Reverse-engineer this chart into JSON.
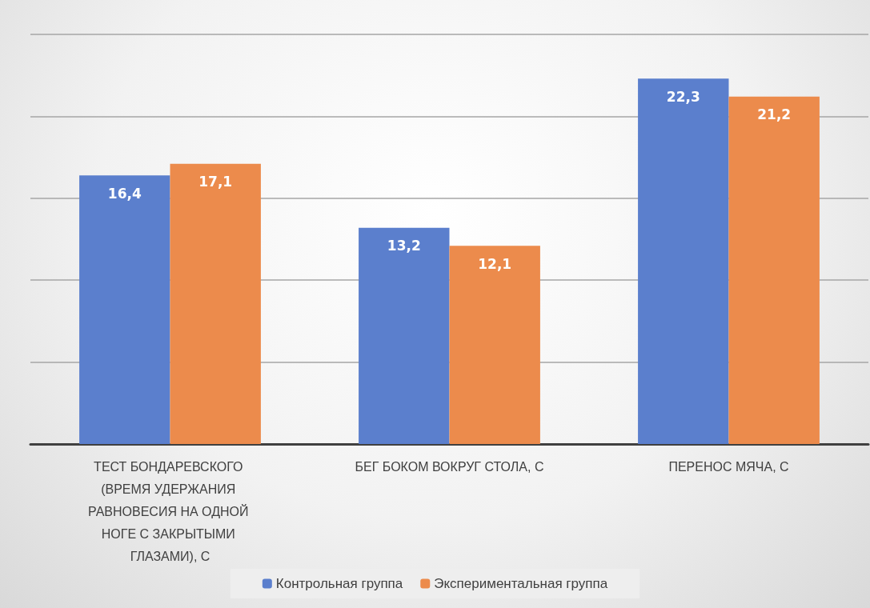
{
  "chart_data": {
    "type": "bar",
    "categories": [
      "ТЕСТ БОНДАРЕВСКОГО (ВРЕМЯ УДЕРЖАНИЯ РАВНОВЕСИЯ НА ОДНОЙ НОГЕ С ЗАКРЫТЫМИ ГЛАЗАМИ), С",
      "БЕГ БОКОМ ВОКРУГ СТОЛА, С",
      "ПЕРЕНОС МЯЧА, С"
    ],
    "series": [
      {
        "name": "Контрольная группа",
        "color": "#5b7fcd",
        "values": [
          16.4,
          13.2,
          22.3
        ],
        "value_labels": [
          "16,4",
          "13,2",
          "22,3"
        ]
      },
      {
        "name": "Экспериментальная группа",
        "color": "#ec8b4c",
        "values": [
          17.1,
          12.1,
          21.2
        ],
        "value_labels": [
          "17,1",
          "12,1",
          "21,2"
        ]
      }
    ],
    "grid": "y",
    "legend": "bottom",
    "tick_labels": "x"
  }
}
